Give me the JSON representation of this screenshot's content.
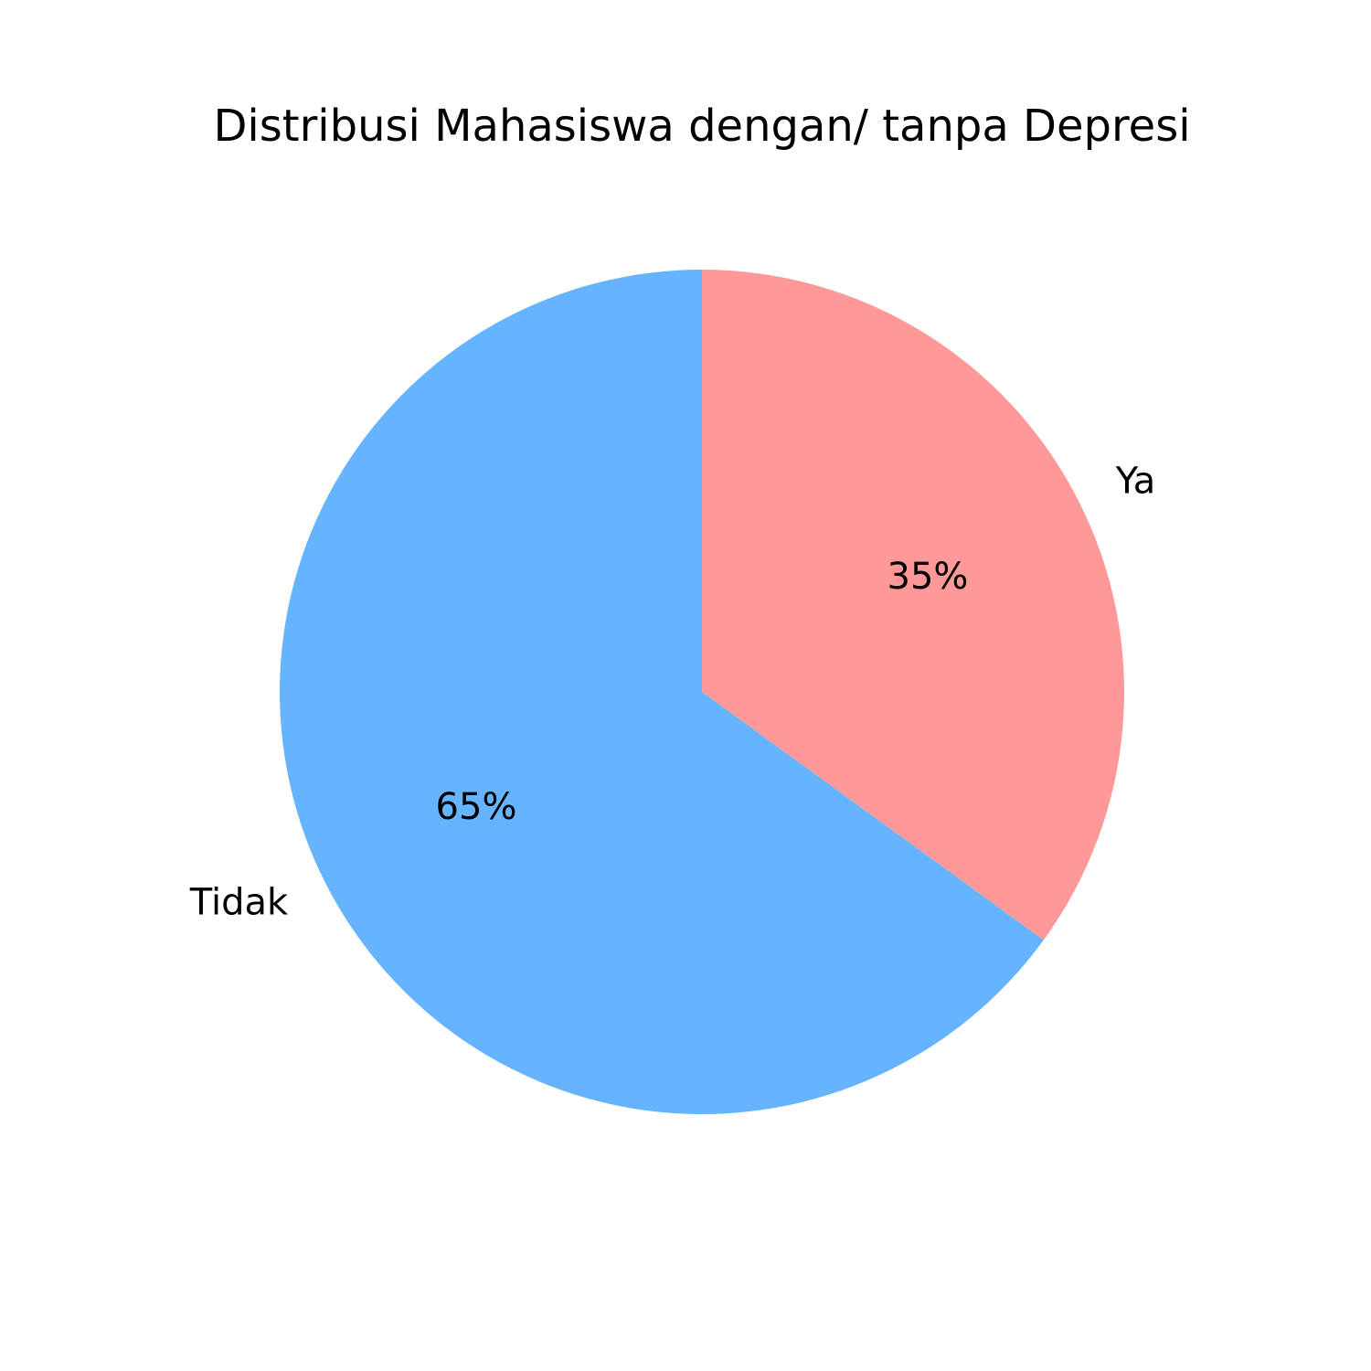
{
  "chart_data": {
    "type": "pie",
    "title": "Distribusi Mahasiswa dengan/ tanpa Depresi",
    "slices": [
      {
        "label": "Ya",
        "value": 35,
        "pct_label": "35%",
        "color": "#ff9999"
      },
      {
        "label": "Tidak",
        "value": 65,
        "pct_label": "65%",
        "color": "#66b3ff"
      }
    ],
    "start_angle": "top (12 o'clock)",
    "direction": "clockwise",
    "legend": "none"
  }
}
